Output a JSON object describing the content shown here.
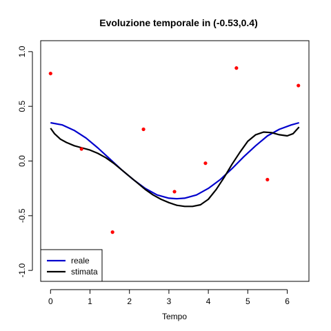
{
  "chart_data": {
    "type": "line",
    "title": "Evoluzione temporale in (-0.53,0.4)",
    "xlabel": "Tempo",
    "ylabel": "",
    "xlim": [
      -0.25,
      6.55
    ],
    "ylim": [
      -1.1,
      1.1
    ],
    "x_ticks": [
      0,
      1,
      2,
      3,
      4,
      5,
      6
    ],
    "y_ticks": [
      -1.0,
      -0.5,
      0.0,
      0.5,
      1.0
    ],
    "x_tick_labels": [
      "0",
      "1",
      "2",
      "3",
      "4",
      "5",
      "6"
    ],
    "y_tick_labels": [
      "-1.0",
      "-0.5",
      "0.0",
      "0.5",
      "1.0"
    ],
    "grid": false,
    "legend_position": "bottom-left",
    "series": [
      {
        "name": "reale",
        "color": "#0000cd",
        "points": [
          [
            0.0,
            0.35
          ],
          [
            0.3,
            0.33
          ],
          [
            0.6,
            0.28
          ],
          [
            0.9,
            0.21
          ],
          [
            1.2,
            0.12
          ],
          [
            1.5,
            0.02
          ],
          [
            1.8,
            -0.08
          ],
          [
            2.1,
            -0.17
          ],
          [
            2.4,
            -0.25
          ],
          [
            2.7,
            -0.31
          ],
          [
            3.0,
            -0.34
          ],
          [
            3.2,
            -0.345
          ],
          [
            3.4,
            -0.34
          ],
          [
            3.7,
            -0.31
          ],
          [
            4.0,
            -0.25
          ],
          [
            4.3,
            -0.17
          ],
          [
            4.6,
            -0.07
          ],
          [
            4.9,
            0.04
          ],
          [
            5.2,
            0.14
          ],
          [
            5.5,
            0.23
          ],
          [
            5.8,
            0.29
          ],
          [
            6.1,
            0.33
          ],
          [
            6.3,
            0.35
          ]
        ]
      },
      {
        "name": "stimata",
        "color": "#000000",
        "points": [
          [
            0.0,
            0.3
          ],
          [
            0.1,
            0.25
          ],
          [
            0.25,
            0.2
          ],
          [
            0.4,
            0.17
          ],
          [
            0.6,
            0.14
          ],
          [
            0.8,
            0.12
          ],
          [
            1.0,
            0.1
          ],
          [
            1.2,
            0.07
          ],
          [
            1.4,
            0.03
          ],
          [
            1.6,
            -0.02
          ],
          [
            1.8,
            -0.08
          ],
          [
            2.0,
            -0.14
          ],
          [
            2.2,
            -0.2
          ],
          [
            2.4,
            -0.26
          ],
          [
            2.6,
            -0.31
          ],
          [
            2.8,
            -0.35
          ],
          [
            3.0,
            -0.38
          ],
          [
            3.2,
            -0.405
          ],
          [
            3.4,
            -0.415
          ],
          [
            3.6,
            -0.415
          ],
          [
            3.8,
            -0.4
          ],
          [
            4.0,
            -0.35
          ],
          [
            4.2,
            -0.26
          ],
          [
            4.4,
            -0.15
          ],
          [
            4.6,
            -0.03
          ],
          [
            4.8,
            0.08
          ],
          [
            5.0,
            0.18
          ],
          [
            5.2,
            0.24
          ],
          [
            5.4,
            0.265
          ],
          [
            5.6,
            0.26
          ],
          [
            5.8,
            0.24
          ],
          [
            6.0,
            0.23
          ],
          [
            6.15,
            0.25
          ],
          [
            6.3,
            0.31
          ]
        ]
      }
    ],
    "observations": {
      "color": "#ff0000",
      "points": [
        [
          0.0,
          0.8
        ],
        [
          0.785,
          0.11
        ],
        [
          1.571,
          -0.65
        ],
        [
          2.356,
          0.29
        ],
        [
          3.142,
          -0.28
        ],
        [
          3.927,
          -0.02
        ],
        [
          4.712,
          0.85
        ],
        [
          5.498,
          -0.17
        ],
        [
          6.283,
          0.69
        ]
      ]
    }
  }
}
